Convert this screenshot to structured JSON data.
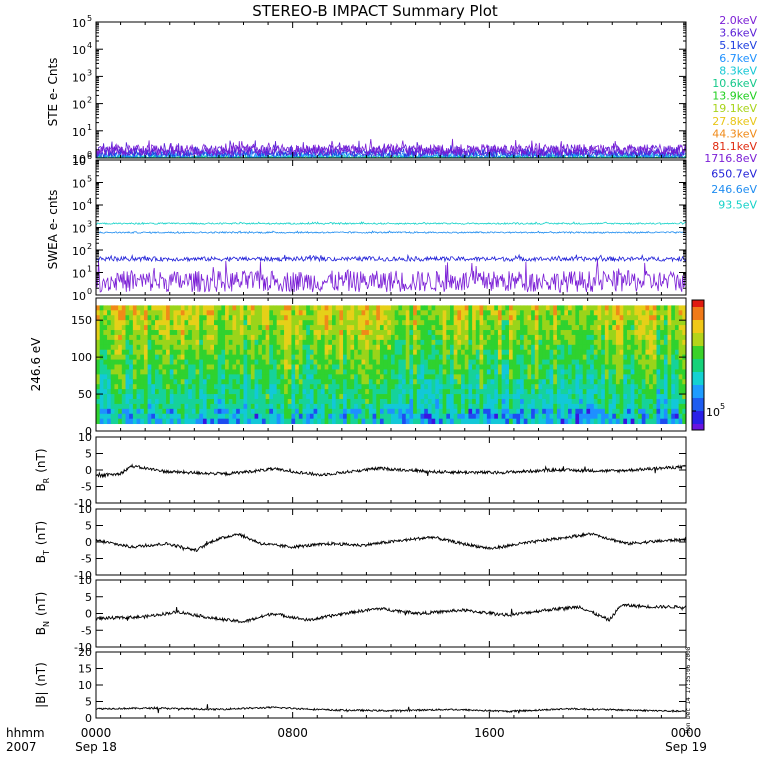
{
  "title": "STEREO-B IMPACT Summary Plot",
  "timestamp": "Mon Dec 14 17:35:06 2008",
  "chart_data": [
    {
      "type": "line",
      "name": "ste",
      "ylabel": "STE e- Cnts",
      "yscale": "log",
      "ylim": [
        1,
        100000
      ],
      "yticks": [
        "10",
        "10",
        "10",
        "10",
        "10",
        "10"
      ],
      "ytick_exponents": [
        "0",
        "1",
        "2",
        "3",
        "4",
        "5"
      ],
      "series": [
        {
          "name": "2.0keV",
          "color": "#7b1fd6",
          "level": 2.0,
          "spread": 1.6
        },
        {
          "name": "3.6keV",
          "color": "#5a1fd6",
          "level": 1.8,
          "spread": 1.6
        },
        {
          "name": "5.1keV",
          "color": "#2040e0",
          "level": 1.5,
          "spread": 1.4
        },
        {
          "name": "6.7keV",
          "color": "#1e90ff",
          "level": 1.3,
          "spread": 1.3
        },
        {
          "name": "8.3keV",
          "color": "#14c8d4",
          "level": 1.15,
          "spread": 1.2
        },
        {
          "name": "10.6keV",
          "color": "#16c98b",
          "level": 1.05,
          "spread": 1.1
        },
        {
          "name": "13.9keV",
          "color": "#1fcf1f",
          "level": 1.02,
          "spread": 1.05
        },
        {
          "name": "19.1keV",
          "color": "#a8d41a",
          "level": 1.0,
          "spread": 1.02
        },
        {
          "name": "27.8keV",
          "color": "#e8c618",
          "level": 1.0,
          "spread": 1.01
        },
        {
          "name": "44.3keV",
          "color": "#f08a18",
          "level": 1.0,
          "spread": 1.0
        },
        {
          "name": "81.1keV",
          "color": "#e02a10",
          "level": 1.0,
          "spread": 1.0
        }
      ]
    },
    {
      "type": "line",
      "name": "swea",
      "ylabel": "SWEA e- cnts",
      "yscale": "log",
      "ylim": [
        1,
        1000000
      ],
      "yticks": [
        "10",
        "10",
        "10",
        "10",
        "10",
        "10",
        "10"
      ],
      "ytick_exponents": [
        "0",
        "1",
        "2",
        "3",
        "4",
        "5",
        "6"
      ],
      "series": [
        {
          "name": "1716.8eV",
          "color": "#7b1fd6",
          "level": 4.0,
          "spread": 3.0
        },
        {
          "name": "650.7eV",
          "color": "#2020d8",
          "level": 40,
          "spread": 1.25
        },
        {
          "name": "246.6eV",
          "color": "#1e8cf0",
          "level": 600,
          "spread": 1.08
        },
        {
          "name": "93.5eV",
          "color": "#14d2c8",
          "level": 1500,
          "spread": 1.08
        }
      ]
    },
    {
      "type": "heatmap",
      "name": "pad",
      "ylabel": "246.6 eV",
      "ylim": [
        0,
        180
      ],
      "yticks": [
        "0",
        "50",
        "100",
        "150"
      ],
      "ytick_values": [
        0,
        50,
        100,
        150
      ],
      "colorbar_label": "10",
      "colorbar_exponent": "5"
    },
    {
      "type": "line",
      "name": "br",
      "ylabel_base": "B",
      "ylabel_sub": "R",
      "ylabel_unit": "(nT)",
      "ylim": [
        -10,
        10
      ],
      "yticks": [
        "-10",
        "-5",
        "0",
        "5",
        "10"
      ],
      "ytick_values": [
        -10,
        -5,
        0,
        5,
        10
      ],
      "shape": [
        [
          0,
          -1.8
        ],
        [
          0.04,
          -1.2
        ],
        [
          0.06,
          1.2
        ],
        [
          0.12,
          -0.5
        ],
        [
          0.22,
          -1.2
        ],
        [
          0.3,
          0.3
        ],
        [
          0.38,
          -1.5
        ],
        [
          0.48,
          0.5
        ],
        [
          0.58,
          -0.6
        ],
        [
          0.68,
          -0.8
        ],
        [
          0.78,
          0.0
        ],
        [
          0.88,
          -0.3
        ],
        [
          1.0,
          1.0
        ]
      ],
      "color": "#000000"
    },
    {
      "type": "line",
      "name": "bt",
      "ylabel_base": "B",
      "ylabel_sub": "T",
      "ylabel_unit": "(nT)",
      "ylim": [
        -10,
        10
      ],
      "yticks": [
        "-10",
        "-5",
        "0",
        "5",
        "10"
      ],
      "ytick_values": [
        -10,
        -5,
        0,
        5,
        10
      ],
      "shape": [
        [
          0,
          0.5
        ],
        [
          0.06,
          -1.5
        ],
        [
          0.12,
          -0.5
        ],
        [
          0.17,
          -2.5
        ],
        [
          0.2,
          0.5
        ],
        [
          0.24,
          2.5
        ],
        [
          0.28,
          -0.5
        ],
        [
          0.33,
          -1.5
        ],
        [
          0.4,
          -0.5
        ],
        [
          0.45,
          -1.0
        ],
        [
          0.52,
          0.5
        ],
        [
          0.57,
          1.5
        ],
        [
          0.62,
          -0.5
        ],
        [
          0.67,
          -2.0
        ],
        [
          0.72,
          -0.5
        ],
        [
          0.78,
          1.0
        ],
        [
          0.84,
          2.5
        ],
        [
          0.9,
          -0.5
        ],
        [
          0.95,
          0.2
        ],
        [
          1.0,
          0.8
        ]
      ],
      "color": "#000000"
    },
    {
      "type": "line",
      "name": "bn",
      "ylabel_base": "B",
      "ylabel_sub": "N",
      "ylabel_unit": "(nT)",
      "ylim": [
        -10,
        10
      ],
      "yticks": [
        "-10",
        "-5",
        "0",
        "5",
        "10"
      ],
      "ytick_values": [
        -10,
        -5,
        0,
        5,
        10
      ],
      "shape": [
        [
          0,
          -1.5
        ],
        [
          0.08,
          -1.0
        ],
        [
          0.14,
          0.5
        ],
        [
          0.2,
          -1.5
        ],
        [
          0.25,
          -2.5
        ],
        [
          0.3,
          0.0
        ],
        [
          0.36,
          -2.0
        ],
        [
          0.42,
          0.0
        ],
        [
          0.48,
          1.5
        ],
        [
          0.55,
          0.0
        ],
        [
          0.62,
          1.0
        ],
        [
          0.7,
          -0.5
        ],
        [
          0.76,
          1.0
        ],
        [
          0.82,
          2.0
        ],
        [
          0.87,
          -2.0
        ],
        [
          0.89,
          2.5
        ],
        [
          0.94,
          2.0
        ],
        [
          1.0,
          2.0
        ]
      ],
      "color": "#000000"
    },
    {
      "type": "line",
      "name": "bmag",
      "ylabel_base": "|B|",
      "ylabel_sub": "",
      "ylabel_unit": "(nT)",
      "ylim": [
        0,
        20
      ],
      "yticks": [
        "0",
        "5",
        "10",
        "15",
        "20"
      ],
      "ytick_values": [
        0,
        5,
        10,
        15,
        20
      ],
      "shape": [
        [
          0,
          2.8
        ],
        [
          0.1,
          3.0
        ],
        [
          0.2,
          2.6
        ],
        [
          0.3,
          3.2
        ],
        [
          0.4,
          2.4
        ],
        [
          0.5,
          2.2
        ],
        [
          0.6,
          2.6
        ],
        [
          0.7,
          2.0
        ],
        [
          0.8,
          2.8
        ],
        [
          0.9,
          2.4
        ],
        [
          1.0,
          2.0
        ]
      ],
      "color": "#000000"
    }
  ],
  "x_axis": {
    "label_top": "hhmm",
    "label_bottom": "2007",
    "ticks": [
      {
        "pos": 0.0,
        "top": "0000",
        "bottom": "Sep 18"
      },
      {
        "pos": 0.3333,
        "top": "0800",
        "bottom": ""
      },
      {
        "pos": 0.6667,
        "top": "1600",
        "bottom": ""
      },
      {
        "pos": 1.0,
        "top": "0000",
        "bottom": "Sep 19"
      }
    ]
  }
}
